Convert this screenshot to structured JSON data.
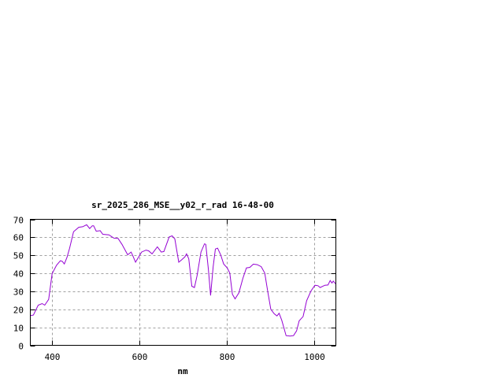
{
  "chart_data": {
    "type": "line",
    "title": "sr_2025_286_MSE__y02_r_rad 16-48-00",
    "xlabel": "nm",
    "ylabel": "",
    "xlim": [
      350,
      1050
    ],
    "ylim": [
      0,
      70
    ],
    "xticks": [
      400,
      600,
      800,
      1000
    ],
    "yticks": [
      0,
      10,
      20,
      30,
      40,
      50,
      60,
      70
    ],
    "grid": true,
    "line_color": "#9400d3",
    "series": [
      {
        "x": [
          350,
          357,
          368,
          377,
          383,
          392,
          400,
          410,
          419,
          423,
          428,
          434,
          440,
          449,
          461,
          470,
          479,
          486,
          492,
          495,
          501,
          510,
          516,
          530,
          542,
          551,
          560,
          573,
          581,
          585,
          591,
          605,
          615,
          621,
          629,
          641,
          650,
          656,
          668,
          675,
          681,
          690,
          696,
          704,
          708,
          713,
          720,
          726,
          732,
          741,
          749,
          752,
          758,
          763,
          769,
          774,
          779,
          786,
          793,
          801,
          807,
          813,
          819,
          828,
          837,
          845,
          853,
          861,
          870,
          879,
          887,
          894,
          901,
          909,
          915,
          920,
          926,
          936,
          945,
          953,
          960,
          966,
          975,
          983,
          993,
          1002,
          1009,
          1014,
          1025,
          1032,
          1037,
          1041,
          1044,
          1050
        ],
        "y": [
          16.5,
          16.8,
          22.3,
          23.2,
          22.3,
          25.5,
          39.8,
          44.5,
          47,
          46.7,
          45.2,
          48.9,
          54,
          63.1,
          65.6,
          65.9,
          67,
          64.9,
          66.4,
          66.4,
          63.4,
          63.7,
          61.7,
          61.4,
          59.5,
          59.4,
          56.1,
          50.3,
          51.8,
          49.6,
          46.2,
          51.8,
          52.9,
          52.5,
          50.8,
          54.7,
          51.8,
          52.1,
          60.2,
          60.8,
          59.1,
          46.2,
          47.4,
          49.1,
          50.8,
          48.1,
          32.8,
          32.1,
          38.6,
          51.8,
          56.4,
          56.1,
          42.3,
          27.7,
          43.7,
          53.5,
          54,
          50.3,
          45.2,
          43,
          40.1,
          28.4,
          25.8,
          29.2,
          37.2,
          43,
          43.3,
          45.1,
          44.8,
          43.7,
          40.1,
          29.9,
          20,
          17.5,
          16.3,
          17.8,
          13.9,
          5.4,
          5.1,
          5.4,
          8,
          13.6,
          16,
          24.8,
          30.2,
          33.4,
          33.1,
          32.1,
          33.4,
          33.5,
          36,
          34.6,
          35.7,
          34
        ]
      }
    ]
  }
}
